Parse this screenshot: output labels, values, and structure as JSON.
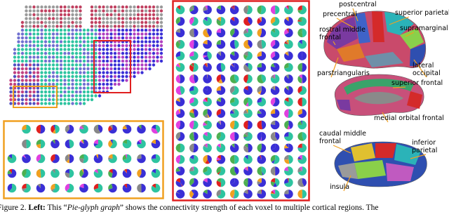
{
  "figure": {
    "labels": [
      {
        "lines": [
          "postcentral"
        ]
      },
      {
        "lines": [
          "precentral"
        ]
      },
      {
        "lines": [
          "superior parietal"
        ]
      },
      {
        "lines": [
          "rostral middle",
          "frontal"
        ]
      },
      {
        "lines": [
          "supramarginal"
        ]
      },
      {
        "lines": [
          "lateral",
          "occipital"
        ]
      },
      {
        "lines": [
          "parstriangularis"
        ]
      },
      {
        "lines": [
          "superior frontal"
        ]
      },
      {
        "lines": [
          "medial orbital frontal"
        ]
      },
      {
        "lines": [
          "caudal middle",
          "frontal"
        ]
      },
      {
        "lines": [
          "inferior",
          "parietal"
        ]
      },
      {
        "lines": [
          "insula"
        ]
      }
    ],
    "caption": {
      "number": "Figure 2.",
      "lead": "Left:",
      "pre": "This “",
      "italic": "Pie-glyph graph",
      "post": "” shows the connectivity strength of each voxel to multiple cortical regions. The"
    }
  }
}
